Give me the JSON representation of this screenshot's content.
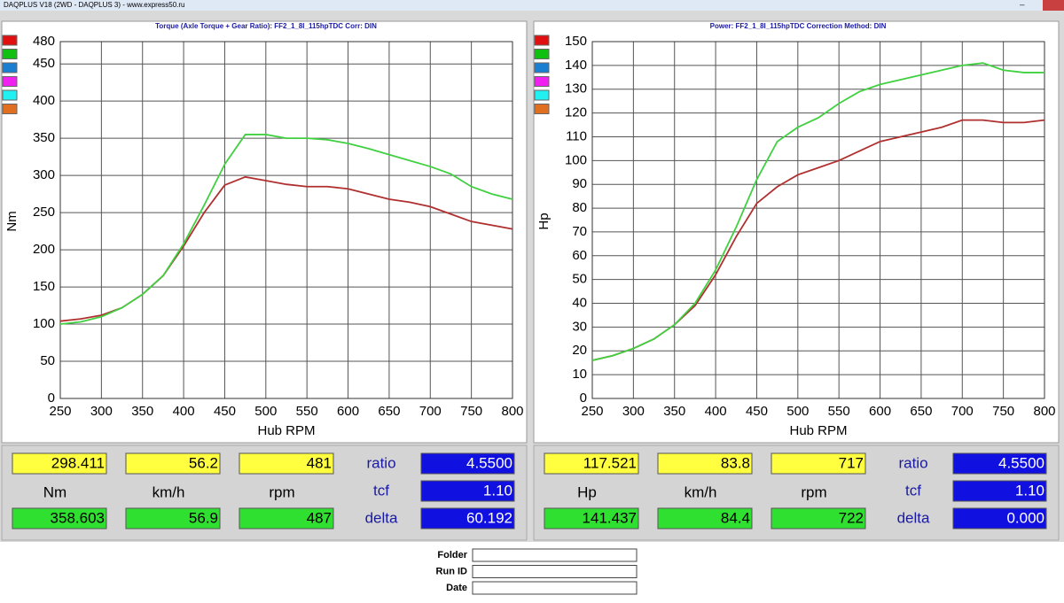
{
  "window": {
    "title": "DAQPLUS V18 (2WD - DAQPLUS 3) - www.express50.ru"
  },
  "charts": [
    {
      "type": "line",
      "title": "Torque (Axle Torque + Gear Ratio): FF2_1_8l_115hpTDC     Corr: DIN",
      "x_label": "Hub RPM",
      "y_label": "Nm",
      "xlim": [
        250,
        800
      ],
      "xticks": [
        250,
        300,
        350,
        400,
        450,
        500,
        550,
        600,
        650,
        700,
        750,
        800
      ],
      "ylim": [
        0,
        480
      ],
      "yticks": [
        0,
        50,
        100,
        150,
        200,
        250,
        300,
        350,
        400,
        450,
        480
      ],
      "grid": true,
      "x": [
        250,
        275,
        300,
        325,
        350,
        375,
        400,
        425,
        450,
        475,
        500,
        525,
        550,
        575,
        600,
        625,
        650,
        675,
        700,
        725,
        750,
        775,
        800
      ],
      "series": [
        {
          "color": "#b03030",
          "values": [
            104,
            107,
            112,
            122,
            140,
            165,
            205,
            250,
            287,
            298,
            293,
            288,
            285,
            285,
            282,
            275,
            268,
            264,
            258,
            248,
            238,
            233,
            228
          ]
        },
        {
          "color": "#40d040",
          "values": [
            100,
            103,
            110,
            122,
            140,
            165,
            208,
            260,
            315,
            355,
            355,
            350,
            350,
            348,
            343,
            336,
            328,
            320,
            312,
            302,
            285,
            275,
            268
          ]
        }
      ],
      "readout": {
        "yellow": [
          "298.411",
          "56.2",
          "481"
        ],
        "units": [
          "Nm",
          "km/h",
          "rpm"
        ],
        "green": [
          "358.603",
          "56.9",
          "487"
        ],
        "params": [
          [
            "ratio",
            "4.5500"
          ],
          [
            "tcf",
            "1.10"
          ],
          [
            "delta",
            "60.192"
          ]
        ]
      }
    },
    {
      "type": "line",
      "title": "Power: FF2_1_8l_115hpTDC     Correction Method: DIN",
      "x_label": "Hub RPM",
      "y_label": "Hp",
      "xlim": [
        250,
        800
      ],
      "xticks": [
        250,
        300,
        350,
        400,
        450,
        500,
        550,
        600,
        650,
        700,
        750,
        800
      ],
      "ylim": [
        0,
        150
      ],
      "yticks": [
        0,
        10,
        20,
        30,
        40,
        50,
        60,
        70,
        80,
        90,
        100,
        110,
        120,
        130,
        140,
        150
      ],
      "grid": true,
      "x": [
        250,
        275,
        300,
        325,
        350,
        375,
        400,
        425,
        450,
        475,
        500,
        525,
        550,
        575,
        600,
        625,
        650,
        675,
        700,
        725,
        750,
        775,
        800
      ],
      "series": [
        {
          "color": "#b03030",
          "values": [
            16,
            18,
            21,
            25,
            31,
            39,
            52,
            68,
            82,
            89,
            94,
            97,
            100,
            104,
            108,
            110,
            112,
            114,
            117,
            117,
            116,
            116,
            117
          ]
        },
        {
          "color": "#40d040",
          "values": [
            16,
            18,
            21,
            25,
            31,
            40,
            54,
            72,
            92,
            108,
            114,
            118,
            124,
            129,
            132,
            134,
            136,
            138,
            140,
            141,
            138,
            137,
            137
          ]
        }
      ],
      "readout": {
        "yellow": [
          "117.521",
          "83.8",
          "717"
        ],
        "units": [
          "Hp",
          "km/h",
          "rpm"
        ],
        "green": [
          "141.437",
          "84.4",
          "722"
        ],
        "params": [
          [
            "ratio",
            "4.5500"
          ],
          [
            "tcf",
            "1.10"
          ],
          [
            "delta",
            "0.000"
          ]
        ]
      }
    }
  ],
  "form": {
    "fields": [
      "Folder",
      "Run ID",
      "Date"
    ]
  }
}
